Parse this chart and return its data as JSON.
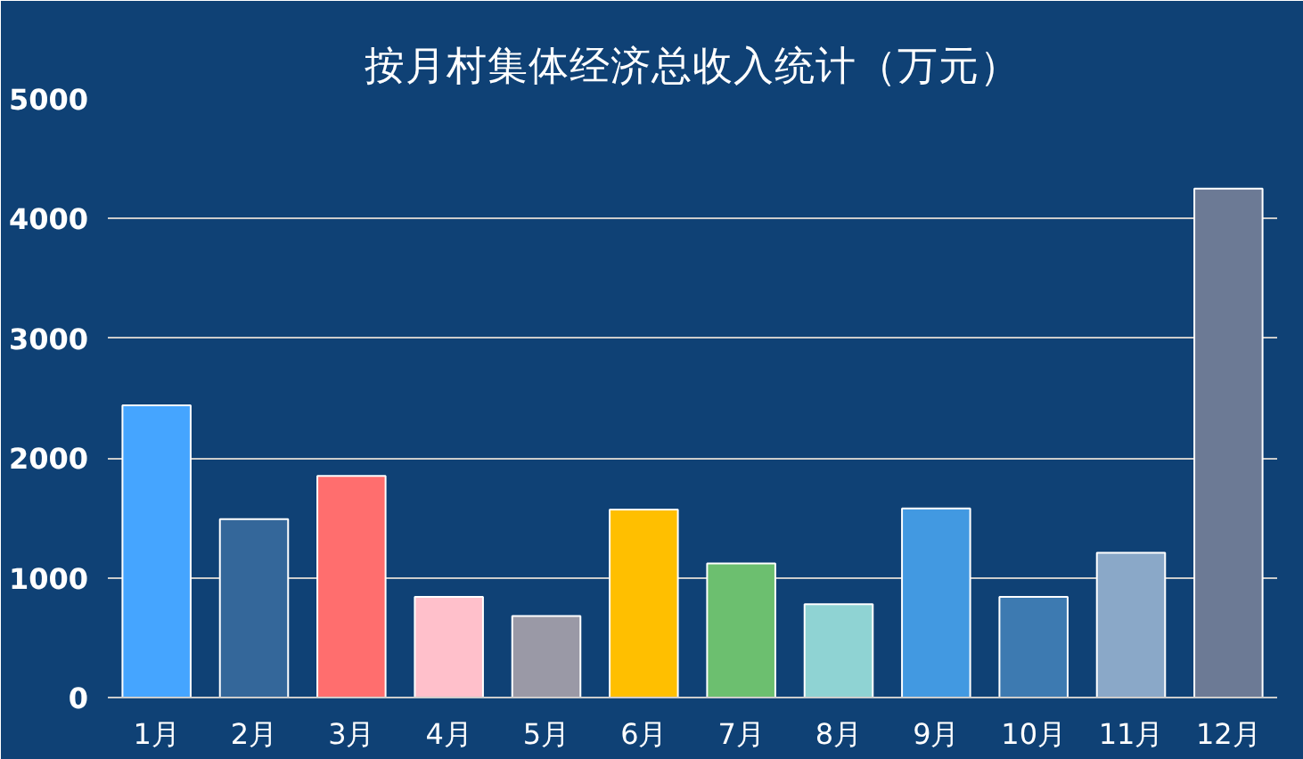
{
  "chart_data": {
    "type": "bar",
    "title": "按月村集体经济总收入统计（万元）",
    "categories": [
      "1月",
      "2月",
      "3月",
      "4月",
      "5月",
      "6月",
      "7月",
      "8月",
      "9月",
      "10月",
      "11月",
      "12月"
    ],
    "values": [
      2440,
      1490,
      1850,
      840,
      680,
      1570,
      1120,
      780,
      1580,
      840,
      1210,
      4250
    ],
    "colors": [
      "#45a5ff",
      "#34679a",
      "#ff6e6e",
      "#ffc0cb",
      "#9a99a6",
      "#ffbf00",
      "#6cbf6f",
      "#8fd3d3",
      "#4299e1",
      "#3d7ab1",
      "#8aa8c8",
      "#6c7a95"
    ],
    "ylim": [
      0,
      5000
    ],
    "yticks": [
      0,
      1000,
      2000,
      3000,
      4000,
      5000
    ],
    "grid": "y"
  }
}
